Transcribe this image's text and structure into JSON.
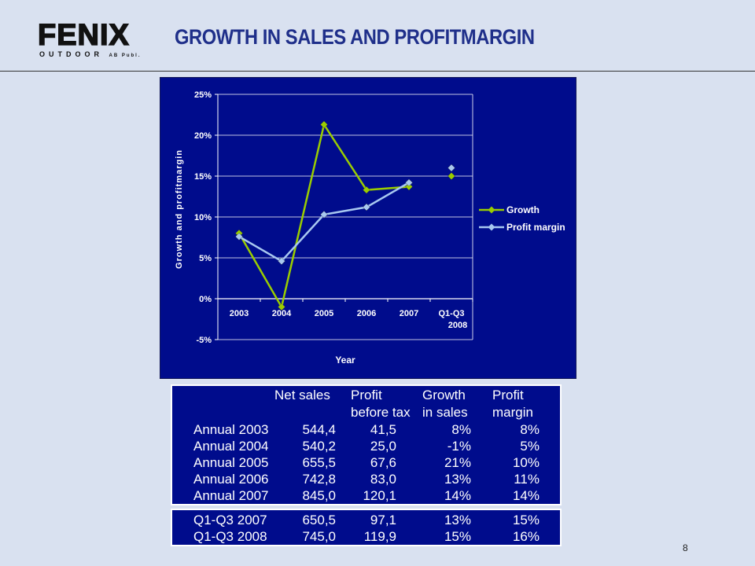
{
  "header": {
    "logo_main": "FENIX",
    "logo_sub": "OUTDOOR",
    "logo_suffix": "AB Publ.",
    "title": "GROWTH IN SALES AND PROFITMARGIN"
  },
  "chart_data": {
    "type": "line",
    "xlabel": "Year",
    "ylabel": "Growth and profitmargin",
    "categories": [
      "2003",
      "2004",
      "2005",
      "2006",
      "2007",
      "Q1-Q3 2008"
    ],
    "ylim": [
      -5,
      25
    ],
    "yticks": [
      "-5%",
      "0%",
      "5%",
      "10%",
      "15%",
      "20%",
      "25%"
    ],
    "grid": true,
    "legend": "right",
    "series": [
      {
        "name": "Growth",
        "color": "#9acd00",
        "values": [
          8,
          -1,
          21.3,
          13.3,
          13.7,
          15
        ],
        "connected_through": 4
      },
      {
        "name": "Profit margin",
        "color": "#a8c8f0",
        "values": [
          7.6,
          4.6,
          10.3,
          11.2,
          14.2,
          16
        ],
        "connected_through": 4
      }
    ],
    "background": "#000c8c"
  },
  "table": {
    "headers": [
      {
        "line1": "",
        "line2": ""
      },
      {
        "line1": "Net sales",
        "line2": ""
      },
      {
        "line1": "Profit",
        "line2": "before tax"
      },
      {
        "line1": "Growth",
        "line2": "in sales"
      },
      {
        "line1": "Profit",
        "line2": "margin"
      }
    ],
    "rows": [
      [
        "Annual 2003",
        "544,4",
        "41,5",
        "8%",
        "8%"
      ],
      [
        "Annual 2004",
        "540,2",
        "25,0",
        "-1%",
        "5%"
      ],
      [
        "Annual 2005",
        "655,5",
        "67,6",
        "21%",
        "10%"
      ],
      [
        "Annual 2006",
        "742,8",
        "83,0",
        "13%",
        "11%"
      ],
      [
        "Annual 2007",
        "845,0",
        "120,1",
        "14%",
        "14%"
      ]
    ],
    "rows2": [
      [
        "Q1-Q3 2007",
        "650,5",
        "97,1",
        "13%",
        "15%"
      ],
      [
        "Q1-Q3 2008",
        "745,0",
        "119,9",
        "15%",
        "16%"
      ]
    ]
  },
  "page_number": "8"
}
